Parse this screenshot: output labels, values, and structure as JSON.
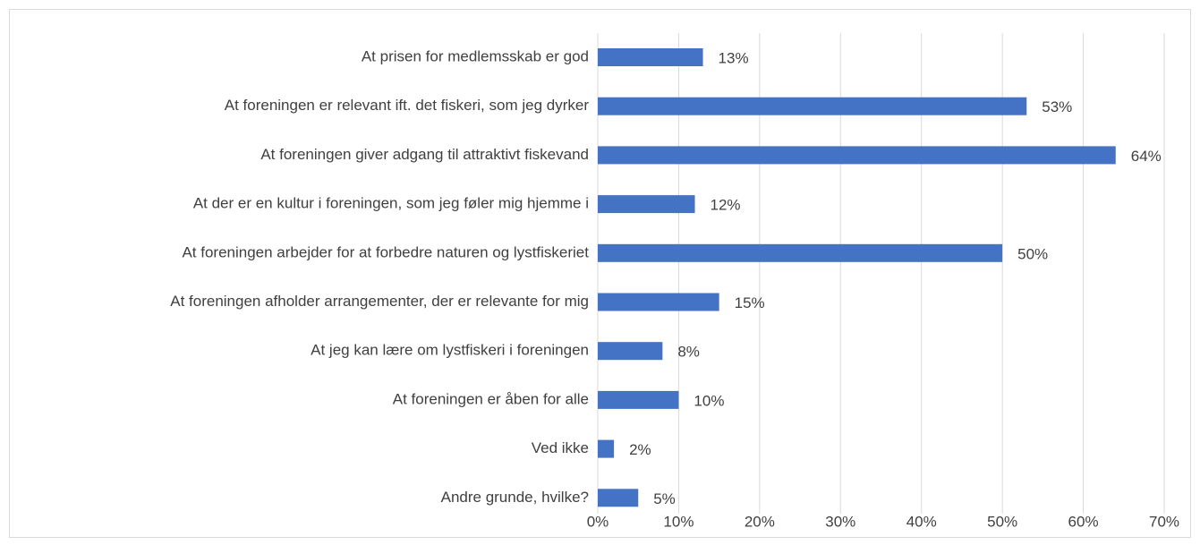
{
  "chart_data": {
    "type": "bar",
    "orientation": "horizontal",
    "categories": [
      "At prisen for medlemsskab er god",
      "At foreningen er relevant ift. det fiskeri, som jeg dyrker",
      "At foreningen giver adgang til attraktivt fiskevand",
      "At der er en kultur i foreningen, som jeg føler mig hjemme i",
      "At foreningen arbejder for at forbedre naturen og lystfiskeriet",
      "At foreningen afholder arrangementer, der er relevante for mig",
      "At jeg kan lære om lystfiskeri i foreningen",
      "At foreningen er åben for alle",
      "Ved ikke",
      "Andre grunde, hvilke?"
    ],
    "values": [
      13,
      53,
      64,
      12,
      50,
      15,
      8,
      10,
      2,
      5
    ],
    "value_labels": [
      "13%",
      "53%",
      "64%",
      "12%",
      "50%",
      "15%",
      "8%",
      "10%",
      "2%",
      "5%"
    ],
    "color": "#4472c4",
    "xlim": [
      0,
      70
    ],
    "xticks": [
      {
        "value": 0,
        "label": "0%"
      },
      {
        "value": 10,
        "label": "10%"
      },
      {
        "value": 20,
        "label": "20%"
      },
      {
        "value": 30,
        "label": "30%"
      },
      {
        "value": 40,
        "label": "40%"
      },
      {
        "value": 50,
        "label": "50%"
      },
      {
        "value": 60,
        "label": "60%"
      },
      {
        "value": 70,
        "label": "70%"
      }
    ],
    "grid": true
  }
}
